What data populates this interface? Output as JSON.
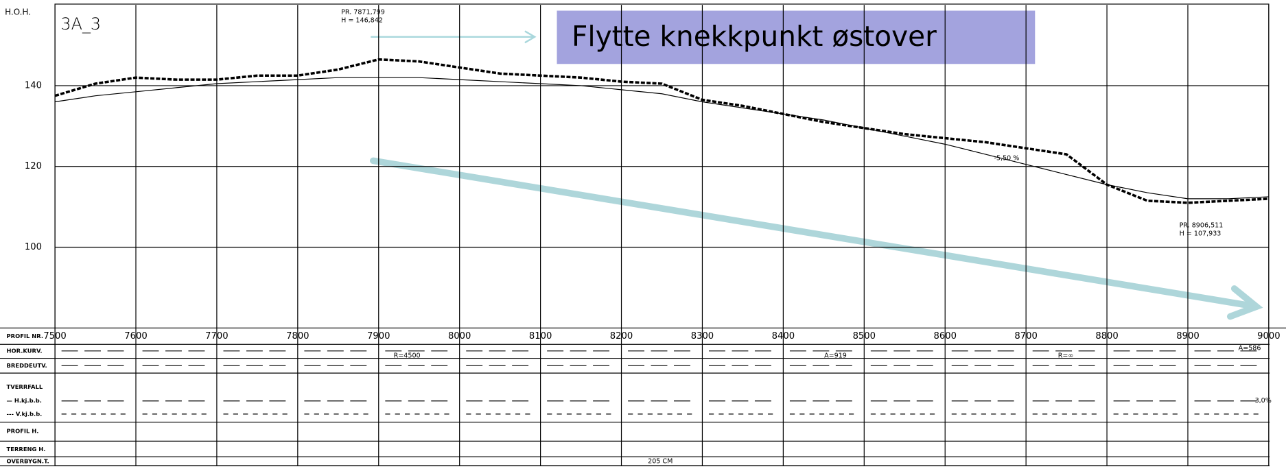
{
  "chart_data": {
    "type": "line",
    "title": "3A_3",
    "y_axis_label": "H.O.H.",
    "x": [
      7500,
      7550,
      7600,
      7650,
      7700,
      7750,
      7800,
      7850,
      7900,
      7950,
      8000,
      8050,
      8100,
      8150,
      8200,
      8250,
      8300,
      8350,
      8400,
      8450,
      8500,
      8550,
      8600,
      8650,
      8700,
      8750,
      8800,
      8850,
      8900,
      8950,
      9000
    ],
    "series": [
      {
        "name": "TERRENG",
        "color": "#000000",
        "values": [
          137.5,
          140.5,
          142,
          141.5,
          141.5,
          142.5,
          142.5,
          144,
          146.5,
          146,
          144.5,
          143,
          142.5,
          142,
          141,
          140.5,
          136.5,
          135,
          133,
          131,
          129.5,
          128,
          127,
          126,
          124.5,
          123,
          115.5,
          111.5,
          111,
          111.5,
          112
        ]
      },
      {
        "name": "PROFIL",
        "color": "#000000",
        "values": [
          136,
          137.5,
          138.5,
          139.5,
          140.5,
          141,
          141.5,
          142,
          142,
          142,
          141.5,
          141,
          140.5,
          140,
          139,
          138,
          136,
          134.5,
          133,
          131.5,
          129.5,
          127.5,
          125.5,
          123,
          120.5,
          118,
          115.5,
          113.5,
          112,
          112,
          112.5
        ]
      }
    ],
    "xlim": [
      7500,
      9000
    ],
    "xticks": [
      7500,
      7600,
      7700,
      7800,
      7900,
      8000,
      8100,
      8200,
      8300,
      8400,
      8500,
      8600,
      8700,
      8800,
      8900,
      9000
    ],
    "ylim": [
      80,
      160
    ],
    "yticks": [
      100,
      120,
      140
    ],
    "grid": true,
    "callout": "Flytte knekkpunkt østover",
    "annotations": [
      "PR. 7871,799",
      "H = 146,842",
      "PR. 8906,511",
      "H = 107,933",
      "-5,50 %",
      "R=4500",
      "A=919",
      "R=∞",
      "A=586",
      "205 CM",
      "3,0%"
    ],
    "row_labels": [
      "PROFIL NR.",
      "HOR.KURV.",
      "BREDDEUTV.",
      "TVERRFALL",
      "— H.kj.b.b.",
      "--- V.kj.b.b.",
      "PROFIL H.",
      "TERRENG H.",
      "OVERBYGN.T."
    ]
  }
}
